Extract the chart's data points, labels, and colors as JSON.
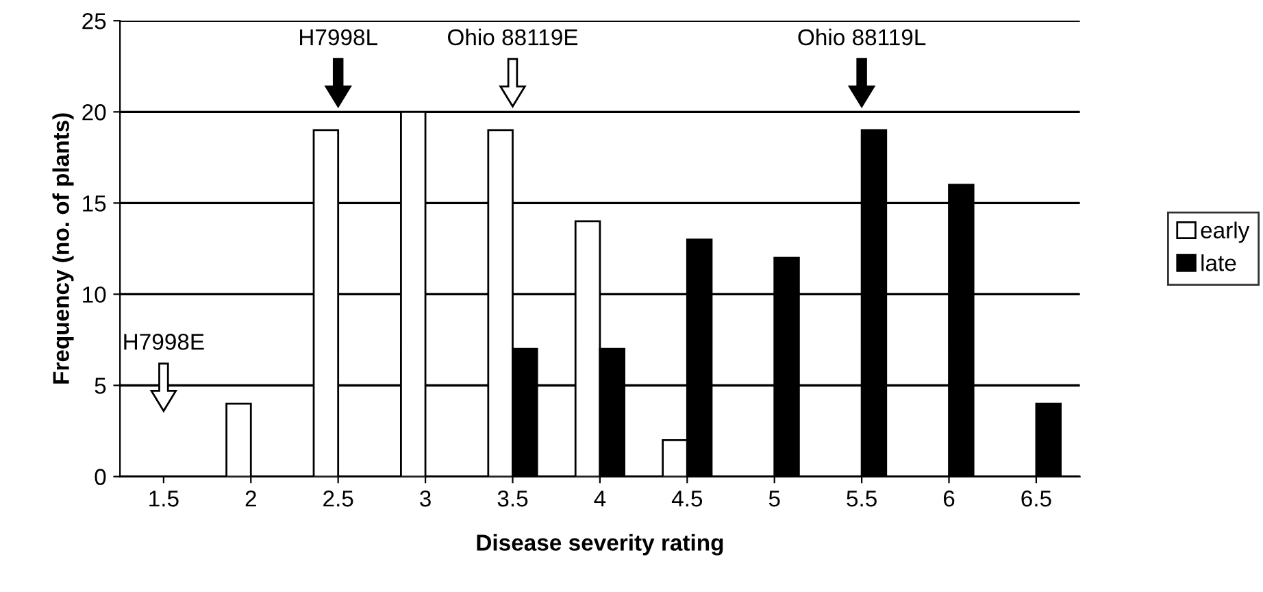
{
  "chart_data": {
    "type": "bar",
    "xlabel": "Disease severity rating",
    "ylabel": "Frequency (no. of plants)",
    "categories": [
      "1.5",
      "2",
      "2.5",
      "3",
      "3.5",
      "4",
      "4.5",
      "5",
      "5.5",
      "6",
      "6.5"
    ],
    "series": [
      {
        "name": "early",
        "color": "#ffffff",
        "values": [
          0,
          4,
          19,
          20,
          19,
          14,
          2,
          0,
          0,
          0,
          0
        ]
      },
      {
        "name": "late",
        "color": "#000000",
        "values": [
          0,
          0,
          0,
          0,
          7,
          7,
          13,
          12,
          19,
          16,
          4
        ]
      }
    ],
    "ylim": [
      0,
      25
    ],
    "yticks": [
      0,
      5,
      10,
      15,
      20,
      25
    ],
    "grid": "y",
    "legend": "right",
    "annotations": [
      "H7998E",
      "H7998L",
      "Ohio 88119E",
      "Ohio 88119L"
    ]
  }
}
